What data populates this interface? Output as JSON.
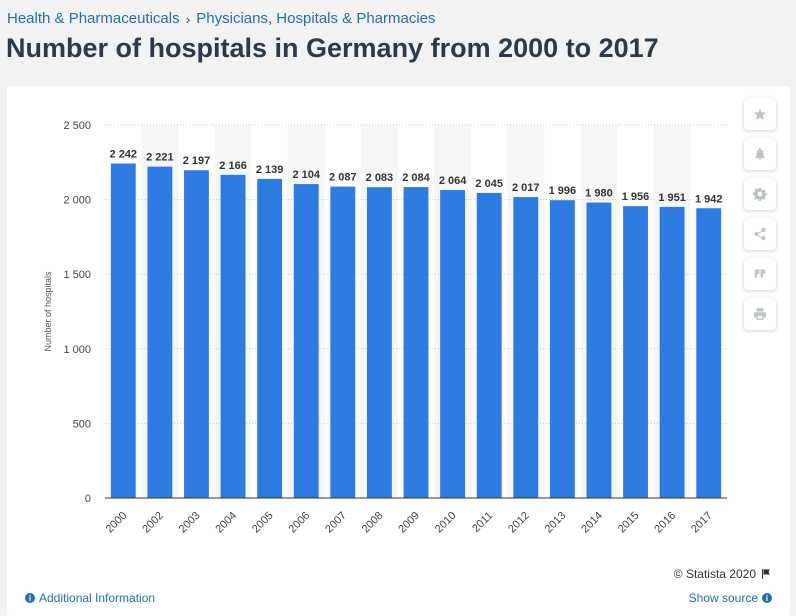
{
  "breadcrumb": {
    "items": [
      "Health & Pharmaceuticals",
      "Physicians, Hospitals & Pharmacies"
    ],
    "separator": "›"
  },
  "page": {
    "title": "Number of hospitals in Germany from 2000 to 2017"
  },
  "toolbar": {
    "icons": [
      "star-icon",
      "bell-icon",
      "gear-icon",
      "share-icon",
      "quote-icon",
      "print-icon"
    ]
  },
  "credit": {
    "text": "© Statista 2020"
  },
  "footer": {
    "left_label": "Additional Information",
    "right_label": "Show source"
  },
  "colors": {
    "bar": "#2d7be0",
    "title": "#2b3a4a",
    "link": "#1f6fb5"
  },
  "chart_data": {
    "type": "bar",
    "categories": [
      "2000",
      "2002",
      "2003",
      "2004",
      "2005",
      "2006",
      "2007",
      "2008",
      "2009",
      "2010",
      "2011",
      "2012",
      "2013",
      "2014",
      "2015",
      "2016",
      "2017"
    ],
    "values": [
      2242,
      2221,
      2197,
      2166,
      2139,
      2104,
      2087,
      2083,
      2084,
      2064,
      2045,
      2017,
      1996,
      1980,
      1956,
      1951,
      1942
    ],
    "value_labels": [
      "2 242",
      "2 221",
      "2 197",
      "2 166",
      "2 139",
      "2 104",
      "2 087",
      "2 083",
      "2 084",
      "2 064",
      "2 045",
      "2 017",
      "1 996",
      "1 980",
      "1 956",
      "1 951",
      "1 942"
    ],
    "ylabel": "Number of hospitals",
    "ylim": [
      0,
      2500
    ],
    "yticks": [
      0,
      500,
      1000,
      1500,
      2000,
      2500
    ],
    "ytick_labels": [
      "0",
      "500",
      "1 000",
      "1 500",
      "2 000",
      "2 500"
    ],
    "grid": true
  }
}
